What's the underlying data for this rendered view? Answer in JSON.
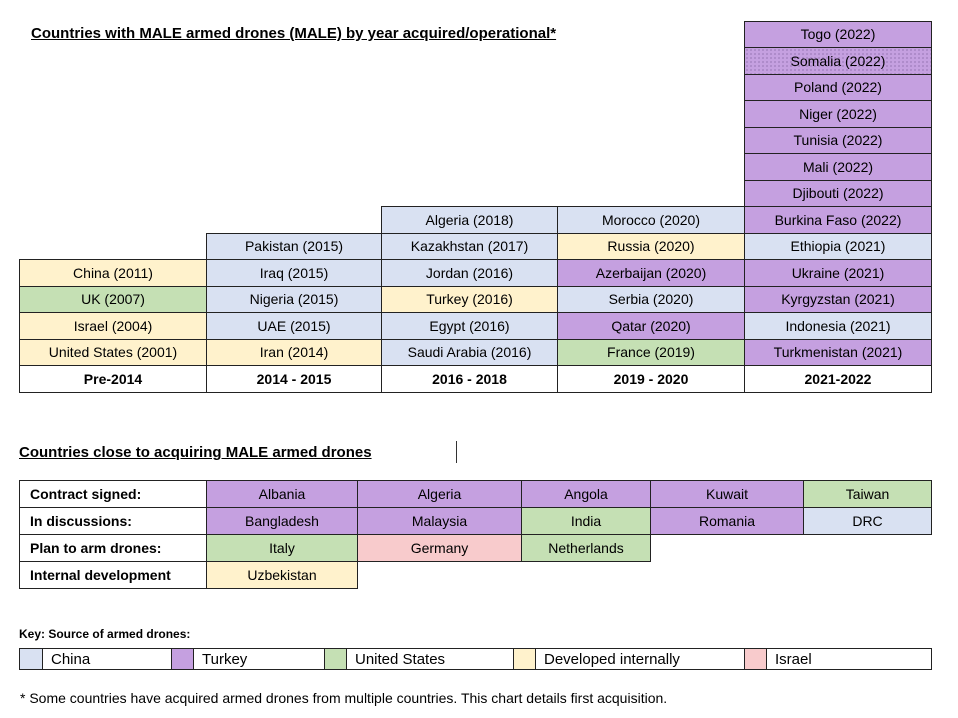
{
  "chart1": {
    "title": "Countries with MALE armed drones (MALE) by year acquired/operational*",
    "columns": [
      {
        "header": "Pre-2014",
        "cells": [
          {
            "label": "United States (2001)",
            "source": "int"
          },
          {
            "label": "Israel (2004)",
            "source": "int"
          },
          {
            "label": "UK (2007)",
            "source": "us"
          },
          {
            "label": "China (2011)",
            "source": "int"
          }
        ]
      },
      {
        "header": "2014 - 2015",
        "cells": [
          {
            "label": "Iran (2014)",
            "source": "int"
          },
          {
            "label": "UAE (2015)",
            "source": "china"
          },
          {
            "label": "Nigeria (2015)",
            "source": "china"
          },
          {
            "label": "Iraq (2015)",
            "source": "china"
          },
          {
            "label": "Pakistan (2015)",
            "source": "china"
          }
        ]
      },
      {
        "header": "2016 - 2018",
        "cells": [
          {
            "label": "Saudi Arabia (2016)",
            "source": "china"
          },
          {
            "label": "Egypt (2016)",
            "source": "china"
          },
          {
            "label": "Turkey (2016)",
            "source": "int"
          },
          {
            "label": "Jordan (2016)",
            "source": "china"
          },
          {
            "label": "Kazakhstan (2017)",
            "source": "china"
          },
          {
            "label": "Algeria (2018)",
            "source": "china"
          }
        ]
      },
      {
        "header": "2019 - 2020",
        "cells": [
          {
            "label": "France (2019)",
            "source": "us"
          },
          {
            "label": "Qatar (2020)",
            "source": "turkey"
          },
          {
            "label": "Serbia (2020)",
            "source": "china"
          },
          {
            "label": "Azerbaijan (2020)",
            "source": "turkey"
          },
          {
            "label": "Russia (2020)",
            "source": "int"
          },
          {
            "label": "Morocco (2020)",
            "source": "china"
          }
        ]
      },
      {
        "header": "2021-2022",
        "cells": [
          {
            "label": "Turkmenistan (2021)",
            "source": "turkey"
          },
          {
            "label": "Indonesia (2021)",
            "source": "china"
          },
          {
            "label": "Kyrgyzstan (2021)",
            "source": "turkey"
          },
          {
            "label": "Ukraine (2021)",
            "source": "turkey"
          },
          {
            "label": "Ethiopia (2021)",
            "source": "china"
          },
          {
            "label": "Burkina Faso (2022)",
            "source": "turkey"
          },
          {
            "label": "Djibouti (2022)",
            "source": "turkey"
          },
          {
            "label": "Mali (2022)",
            "source": "turkey"
          },
          {
            "label": "Tunisia (2022)",
            "source": "turkey"
          },
          {
            "label": "Niger (2022)",
            "source": "turkey"
          },
          {
            "label": "Poland (2022)",
            "source": "turkey"
          },
          {
            "label": "Somalia (2022)",
            "source": "dotted"
          },
          {
            "label": "Togo (2022)",
            "source": "turkey"
          }
        ]
      }
    ]
  },
  "chart2": {
    "title": "Countries close to acquiring MALE armed drones",
    "rows": [
      {
        "label": "Contract signed:",
        "cells": [
          {
            "label": "Albania",
            "source": "turkey"
          },
          {
            "label": "Algeria",
            "source": "turkey"
          },
          {
            "label": "Angola",
            "source": "turkey"
          },
          {
            "label": "Kuwait",
            "source": "turkey"
          },
          {
            "label": "Taiwan",
            "source": "us"
          }
        ]
      },
      {
        "label": "In discussions:",
        "cells": [
          {
            "label": "Bangladesh",
            "source": "turkey"
          },
          {
            "label": "Malaysia",
            "source": "turkey"
          },
          {
            "label": "India",
            "source": "us"
          },
          {
            "label": "Romania",
            "source": "turkey"
          },
          {
            "label": "DRC",
            "source": "china"
          }
        ]
      },
      {
        "label": "Plan to arm drones:",
        "cells": [
          {
            "label": "Italy",
            "source": "us"
          },
          {
            "label": "Germany",
            "source": "israel"
          },
          {
            "label": "Netherlands",
            "source": "us"
          }
        ]
      },
      {
        "label": "Internal development",
        "cells": [
          {
            "label": "Uzbekistan",
            "source": "int"
          }
        ]
      }
    ]
  },
  "key": {
    "title": "Key: Source of armed drones:",
    "items": [
      {
        "label": "China",
        "source": "china"
      },
      {
        "label": "Turkey",
        "source": "turkey"
      },
      {
        "label": "United States",
        "source": "us"
      },
      {
        "label": "Developed internally",
        "source": "int"
      },
      {
        "label": "Israel",
        "source": "israel"
      }
    ]
  },
  "colors": {
    "china": "#d9e1f2",
    "turkey": "#c5a0e0",
    "us": "#c5e0b4",
    "int": "#fff2cc",
    "israel": "#f8cbcc"
  },
  "footnote": "* Some countries have acquired armed drones from multiple countries. This chart details first acquisition."
}
